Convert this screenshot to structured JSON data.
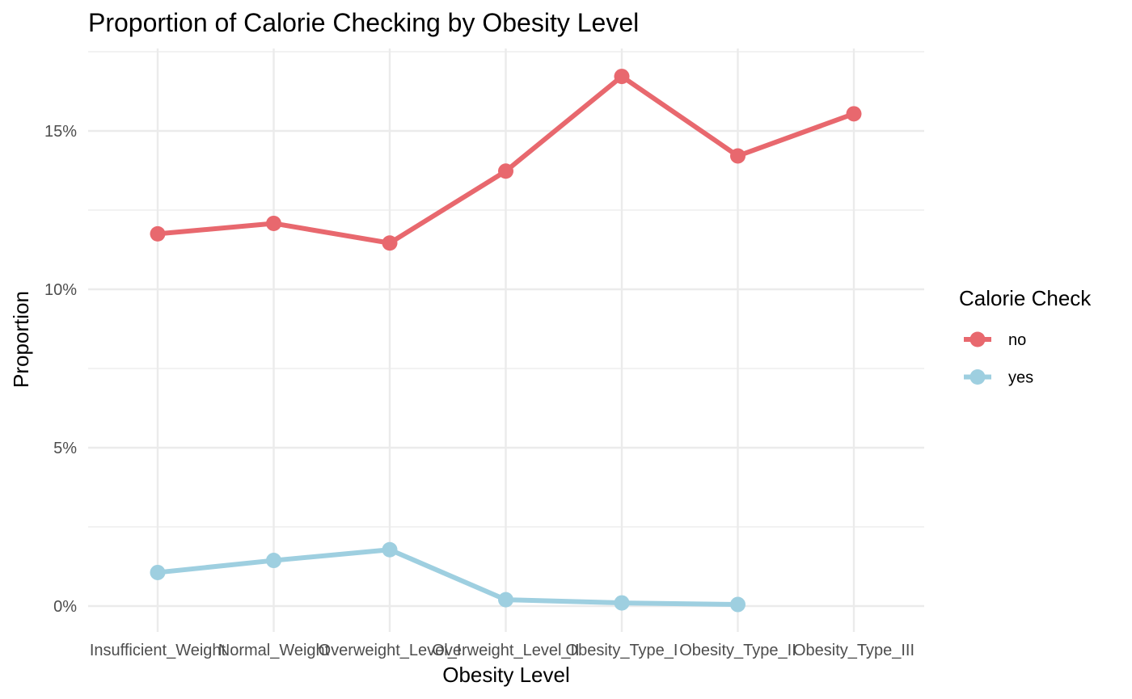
{
  "chart_data": {
    "type": "line",
    "title": "Proportion of Calorie Checking by Obesity Level",
    "xlabel": "Obesity Level",
    "ylabel": "Proportion",
    "categories": [
      "Insufficient_Weight",
      "Normal_Weight",
      "Overweight_Level_I",
      "Overweight_Level_II",
      "Obesity_Type_I",
      "Obesity_Type_II",
      "Obesity_Type_III"
    ],
    "series": [
      {
        "name": "no",
        "color": "#e8686e",
        "values": [
          0.1175,
          0.1208,
          0.1146,
          0.1373,
          0.1672,
          0.1421,
          0.1554
        ]
      },
      {
        "name": "yes",
        "color": "#9ecfe0",
        "values": [
          0.0106,
          0.0144,
          0.0178,
          0.002,
          0.001,
          0.0005,
          null
        ]
      }
    ],
    "ylim": [
      -0.0065,
      0.175
    ],
    "yticks": [
      0,
      0.05,
      0.1,
      0.15
    ],
    "ytick_labels": [
      "0%",
      "5%",
      "10%",
      "15%"
    ],
    "legend": {
      "title": "Calorie Check",
      "position": "right"
    },
    "grid": true,
    "background": "#ffffff",
    "grid_color": "#ebebeb"
  }
}
